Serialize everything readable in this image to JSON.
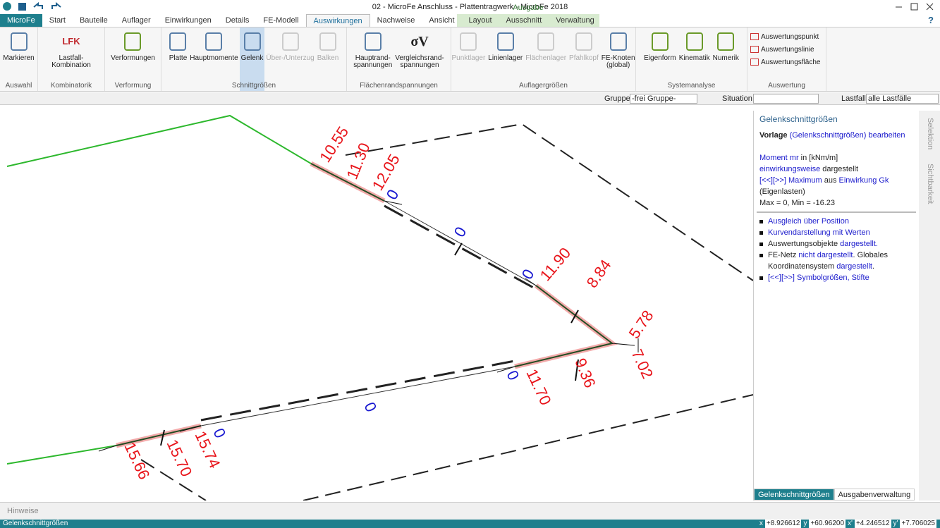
{
  "title_bar": {
    "title": "02 - MicroFe Anschluss - Plattentragwerk - MicroFe 2018",
    "context_group": "Ausgabe"
  },
  "tabs": [
    {
      "label": "MicroFe",
      "app": true
    },
    {
      "label": "Start"
    },
    {
      "label": "Bauteile"
    },
    {
      "label": "Auflager"
    },
    {
      "label": "Einwirkungen"
    },
    {
      "label": "Details"
    },
    {
      "label": "FE-Modell"
    },
    {
      "label": "Auswirkungen",
      "selected": true
    },
    {
      "label": "Nachweise"
    },
    {
      "label": "Ansicht"
    },
    {
      "label": "Layout",
      "context": true
    },
    {
      "label": "Ausschnitt",
      "context": true
    },
    {
      "label": "Verwaltung",
      "context": true
    }
  ],
  "help": "?",
  "ribbon": [
    {
      "label": "Auswahl",
      "buttons": [
        {
          "label": "Markieren"
        }
      ]
    },
    {
      "label": "Kombinatorik",
      "buttons": [
        {
          "label": "Lastfall-\nKombination",
          "icon": "LFK",
          "dropdown": true
        }
      ]
    },
    {
      "label": "Verformung",
      "buttons": [
        {
          "label": "Verformungen",
          "dropdown": true
        }
      ]
    },
    {
      "label": "Schnittgrößen",
      "buttons": [
        {
          "label": "Platte",
          "dropdown": true
        },
        {
          "label": "Hauptmomente"
        },
        {
          "label": "Gelenk",
          "selected": true,
          "dropdown": true
        },
        {
          "label": "Über-/Unterzug",
          "disabled": true,
          "dropdown": true
        },
        {
          "label": "Balken",
          "disabled": true,
          "dropdown": true
        }
      ]
    },
    {
      "label": "Flächenrandspannungen",
      "buttons": [
        {
          "label": "Hauptrand-\nspannungen",
          "dropdown": true
        },
        {
          "label": "Vergleichsrand-\nspannungen",
          "icon": "σV",
          "dropdown": true
        }
      ]
    },
    {
      "label": "Auflagergrößen",
      "buttons": [
        {
          "label": "Punktlager",
          "disabled": true,
          "dropdown": true
        },
        {
          "label": "Linienlager",
          "dropdown": true
        },
        {
          "label": "Flächenlager",
          "disabled": true,
          "dropdown": true
        },
        {
          "label": "Pfahlkopf",
          "disabled": true
        },
        {
          "label": "FE-Knoten\n(global)",
          "dropdown": true
        }
      ]
    },
    {
      "label": "Systemanalyse",
      "buttons": [
        {
          "label": "Eigenform",
          "dropdown": true
        },
        {
          "label": "Kinematik",
          "dropdown": true
        },
        {
          "label": "Numerik",
          "dropdown": true
        }
      ]
    },
    {
      "label": "Auswertung",
      "small": true,
      "buttons": [
        {
          "label": "Auswertungspunkt"
        },
        {
          "label": "Auswertungslinie"
        },
        {
          "label": "Auswertungsfläche"
        }
      ]
    }
  ],
  "toolbar": {
    "group_label": "Gruppe",
    "group_value": "-frei Gruppe-",
    "situation_label": "Situation",
    "lastfall_label": "Lastfall",
    "lastfall_value": "alle Lastfälle"
  },
  "labels": [
    "10.55",
    "11.30",
    "12.05",
    "0",
    "0",
    "0",
    "11.90",
    "8.84",
    "5.78",
    "7.02",
    "9.36",
    "11.70",
    "0",
    "0",
    "0",
    "15.74",
    "15.70",
    "15.66"
  ],
  "panel": {
    "title": "Gelenkschnittgrößen",
    "info": [
      [
        {
          "text": "Vorlage",
          "bold": true
        },
        {
          "text": " (Gelenkschnittgrößen) bearbeiten",
          "link": true
        }
      ],
      [],
      [
        {
          "text": "Moment mr",
          "link": true
        },
        {
          "text": " in [kNm/m]"
        }
      ],
      [
        {
          "text": "einwirkungsweise",
          "link": true
        },
        {
          "text": " dargestellt"
        }
      ],
      [
        {
          "text": "[<<][>>] Maximum",
          "link": true
        },
        {
          "text": " aus "
        },
        {
          "text": "Einwirkung Gk",
          "link": true
        }
      ],
      [
        {
          "text": "(Eigenlasten)"
        }
      ],
      [
        {
          "text": "Max = 0, Min = -16.23"
        }
      ]
    ],
    "bullets": [
      [
        {
          "text": "Ausgleich über Position",
          "link": true
        }
      ],
      [
        {
          "text": "Kurvendarstellung mit Werten",
          "link": true
        }
      ],
      [
        {
          "text": "Auswertungsobjekte "
        },
        {
          "text": "dargestellt.",
          "link": true
        }
      ],
      [
        {
          "text": "FE-Netz "
        },
        {
          "text": "nicht dargestellt",
          "link": true
        },
        {
          "text": ". Globales Koordinatensystem "
        },
        {
          "text": "dargestellt",
          "link": true
        },
        {
          "text": "."
        }
      ],
      [
        {
          "text": "[<<][>>] Symbolgrößen, Stifte",
          "link": true
        }
      ]
    ],
    "tabs": [
      "Gelenkschnittgrößen",
      "Ausgabenverwaltung"
    ]
  },
  "side_tabs": [
    "Selektion",
    "Sichtbarkeit"
  ],
  "hints": "Hinweise",
  "status": {
    "text": "Gelenkschnittgrößen",
    "coords": [
      {
        "label": "x",
        "value": "+8.926612"
      },
      {
        "label": "y",
        "value": "+60.96200"
      },
      {
        "label": "x'",
        "value": "+4.246512"
      },
      {
        "label": "y'",
        "value": "+7.706025"
      }
    ]
  }
}
